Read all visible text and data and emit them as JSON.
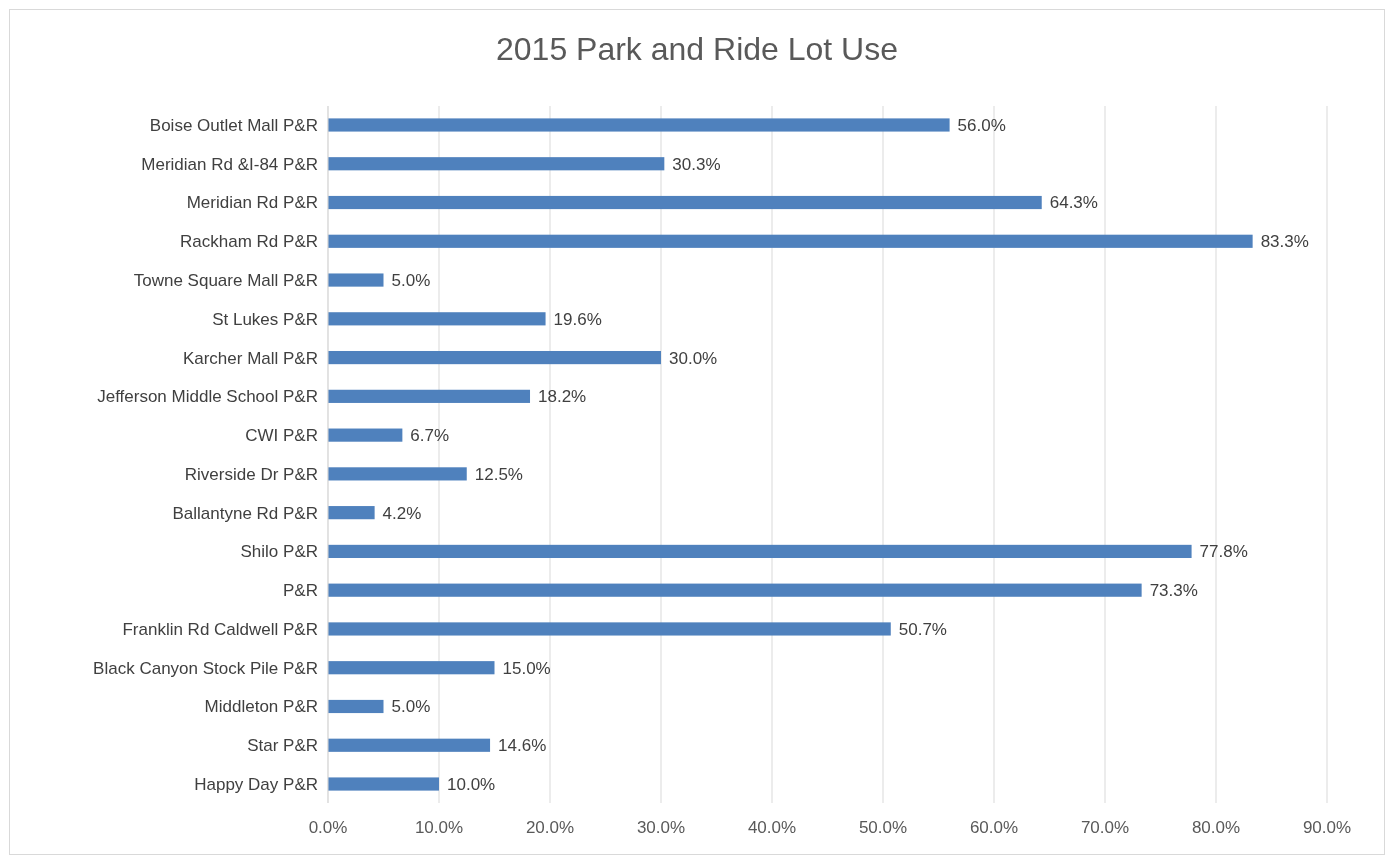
{
  "chart_data": {
    "type": "bar",
    "orientation": "horizontal",
    "title": "2015 Park and Ride Lot Use",
    "categories": [
      "Boise Outlet Mall P&R",
      "Meridian Rd &I-84 P&R",
      "Meridian Rd P&R",
      "Rackham Rd P&R",
      "Towne Square Mall P&R",
      "St Lukes P&R",
      "Karcher Mall P&R",
      "Jefferson Middle School P&R",
      "CWI P&R",
      "Riverside Dr P&R",
      "Ballantyne Rd P&R",
      "Shilo P&R",
      "P&R",
      "Franklin Rd Caldwell P&R",
      "Black Canyon Stock Pile P&R",
      "Middleton P&R",
      "Star P&R",
      "Happy Day P&R"
    ],
    "values": [
      56.0,
      30.3,
      64.3,
      83.3,
      5.0,
      19.6,
      30.0,
      18.2,
      6.7,
      12.5,
      4.2,
      77.8,
      73.3,
      50.7,
      15.0,
      5.0,
      14.6,
      10.0
    ],
    "value_labels": [
      "56.0%",
      "30.3%",
      "64.3%",
      "83.3%",
      "5.0%",
      "19.6%",
      "30.0%",
      "18.2%",
      "6.7%",
      "12.5%",
      "4.2%",
      "77.8%",
      "73.3%",
      "50.7%",
      "15.0%",
      "5.0%",
      "14.6%",
      "10.0%"
    ],
    "color": "#4f81bd",
    "xlim": [
      0,
      90
    ],
    "xticks": [
      {
        "value": 0,
        "label": "0.0%"
      },
      {
        "value": 10,
        "label": "10.0%"
      },
      {
        "value": 20,
        "label": "20.0%"
      },
      {
        "value": 30,
        "label": "30.0%"
      },
      {
        "value": 40,
        "label": "40.0%"
      },
      {
        "value": 50,
        "label": "50.0%"
      },
      {
        "value": 60,
        "label": "60.0%"
      },
      {
        "value": 70,
        "label": "70.0%"
      },
      {
        "value": 80,
        "label": "80.0%"
      },
      {
        "value": 90,
        "label": "90.0%"
      }
    ],
    "grid": "x"
  }
}
